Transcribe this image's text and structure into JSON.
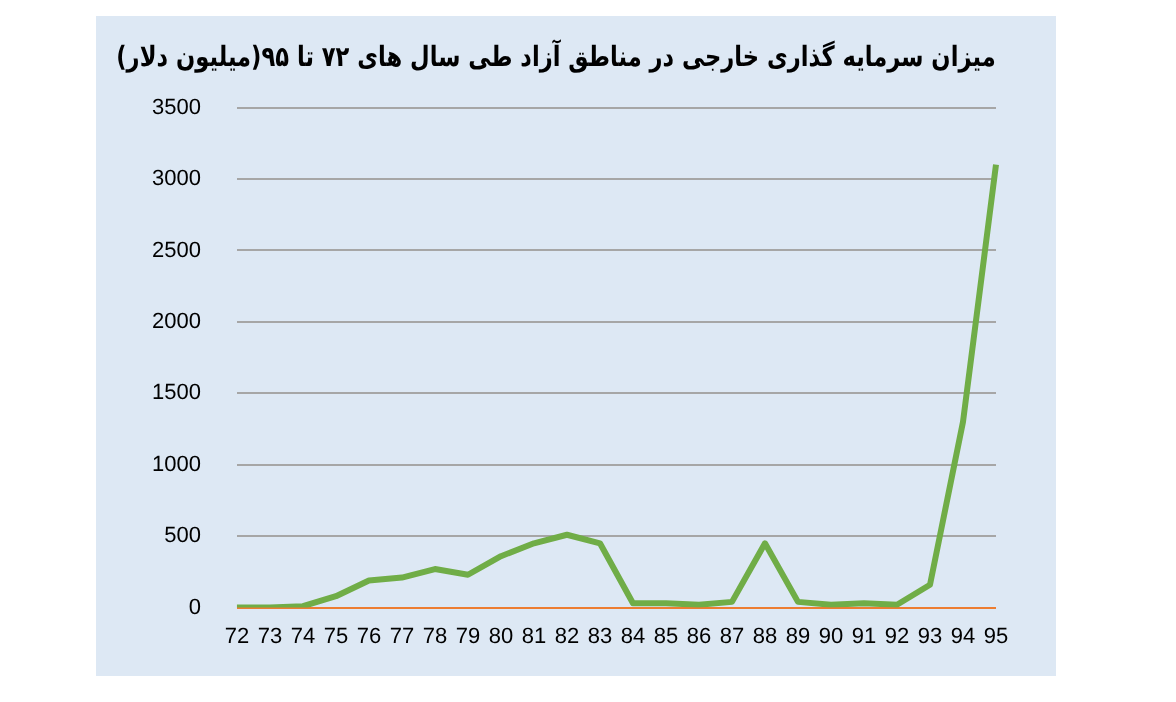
{
  "chart_data": {
    "type": "line",
    "title": "میزان سرمایه گذاری خارجی در مناطق آزاد طی سال های ۷۲ تا ۹۵(میلیون دلار)",
    "categories": [
      "72",
      "73",
      "74",
      "75",
      "76",
      "77",
      "78",
      "79",
      "80",
      "81",
      "82",
      "83",
      "84",
      "85",
      "86",
      "87",
      "88",
      "89",
      "90",
      "91",
      "92",
      "93",
      "94",
      "95"
    ],
    "series": [
      {
        "color": "#70ad47",
        "values": [
          0,
          0,
          10,
          80,
          190,
          210,
          270,
          230,
          360,
          450,
          510,
          450,
          30,
          30,
          20,
          40,
          450,
          40,
          20,
          30,
          20,
          160,
          1300,
          3100
        ]
      }
    ],
    "ylim": [
      0,
      3500
    ],
    "yticks": [
      0,
      500,
      1000,
      1500,
      2000,
      2500,
      3000,
      3500
    ],
    "grid": "y",
    "legend": false,
    "marker": "none",
    "line_style": "solid"
  }
}
